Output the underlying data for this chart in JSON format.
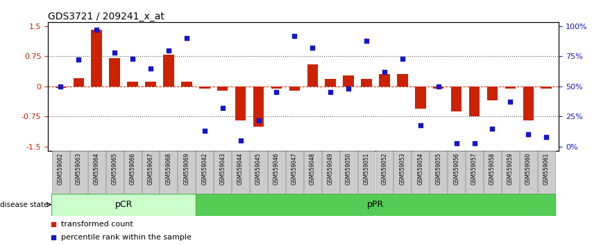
{
  "title": "GDS3721 / 209241_x_at",
  "samples": [
    "GSM559062",
    "GSM559063",
    "GSM559064",
    "GSM559065",
    "GSM559066",
    "GSM559067",
    "GSM559068",
    "GSM559069",
    "GSM559042",
    "GSM559043",
    "GSM559044",
    "GSM559045",
    "GSM559046",
    "GSM559047",
    "GSM559048",
    "GSM559049",
    "GSM559050",
    "GSM559051",
    "GSM559052",
    "GSM559053",
    "GSM559054",
    "GSM559055",
    "GSM559056",
    "GSM559057",
    "GSM559058",
    "GSM559059",
    "GSM559060",
    "GSM559061"
  ],
  "bar_values": [
    -0.03,
    0.2,
    1.4,
    0.7,
    0.12,
    0.12,
    0.78,
    0.12,
    -0.05,
    -0.1,
    -0.85,
    -1.0,
    -0.05,
    -0.1,
    0.55,
    0.18,
    0.28,
    0.18,
    0.3,
    0.3,
    -0.55,
    -0.05,
    -0.63,
    -0.75,
    -0.35,
    -0.05,
    -0.85,
    -0.05
  ],
  "percentile_values": [
    50,
    72,
    97,
    78,
    73,
    65,
    80,
    90,
    13,
    32,
    5,
    22,
    45,
    92,
    82,
    45,
    48,
    88,
    62,
    73,
    18,
    50,
    3,
    3,
    15,
    37,
    10,
    8
  ],
  "pcr_count": 8,
  "yticks": [
    -1.5,
    -0.75,
    0.0,
    0.75,
    1.5
  ],
  "yticklabels": [
    "-1.5",
    "-0.75",
    "0",
    "0.75",
    "1.5"
  ],
  "right_yticks": [
    0,
    25,
    50,
    75,
    100
  ],
  "right_yticklabels": [
    "0%",
    "25%",
    "50%",
    "75%",
    "100%"
  ],
  "bar_color": "#cc2200",
  "dot_color": "#1515cc",
  "hline_color": "#cc2200",
  "dotted_line_color": "#555555",
  "background_color": "#ffffff",
  "pcr_color": "#ccffcc",
  "ppr_color": "#55cc55",
  "tickbox_color": "#cccccc",
  "tickbox_edge": "#999999",
  "legend_bar_label": "transformed count",
  "legend_dot_label": "percentile rank within the sample",
  "disease_state_text": "disease state"
}
